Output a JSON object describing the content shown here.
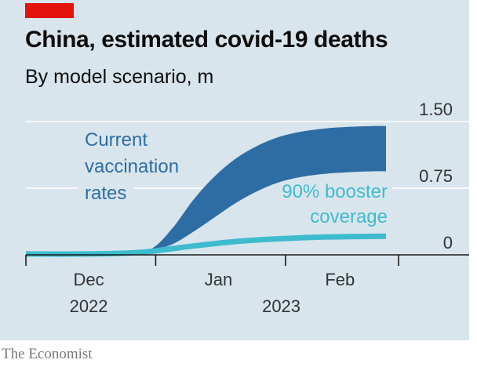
{
  "title": "China, estimated covid-19 deaths",
  "subtitle": "By model scenario, m",
  "source": "The Economist",
  "colors": {
    "background": "#d8e5ec",
    "brand_red": "#e3120b",
    "current_vaccination": "#2e6da4",
    "booster": "#3ebbcf",
    "gridline": "#ffffff",
    "text": "#0c0c0c"
  },
  "chart_data": {
    "type": "area",
    "title": "China, estimated covid-19 deaths",
    "subtitle": "By model scenario, m",
    "ylabel": "m",
    "ylim": [
      0,
      1.5
    ],
    "yticks": [
      {
        "value": 0,
        "label": "0"
      },
      {
        "value": 0.75,
        "label": "0.75"
      },
      {
        "value": 1.5,
        "label": "1.50"
      }
    ],
    "xrange": [
      "2022-12-01",
      "2023-02-28"
    ],
    "xticks": [
      "2022-12-01",
      "2023-01-01",
      "2023-02-01",
      "2023-02-28"
    ],
    "xlabels": [
      {
        "month": "Dec",
        "year": "2022",
        "center": "2022-12-16"
      },
      {
        "month": "Jan",
        "year": "",
        "center": "2023-01-16"
      },
      {
        "month": "Feb",
        "year": "",
        "center": "2023-02-14"
      }
    ],
    "year_labels": [
      {
        "text": "2022",
        "center": "2022-12-16"
      },
      {
        "text": "2023",
        "center": "2023-01-31"
      }
    ],
    "series": [
      {
        "name": "Current vaccination rates",
        "kind": "band",
        "label_lines": [
          "Current",
          "vaccination",
          "rates"
        ],
        "x": [
          "2022-12-01",
          "2022-12-15",
          "2022-12-25",
          "2022-12-31",
          "2023-01-05",
          "2023-01-10",
          "2023-01-15",
          "2023-01-20",
          "2023-01-25",
          "2023-01-30",
          "2023-02-04",
          "2023-02-10",
          "2023-02-16",
          "2023-02-22",
          "2023-02-25"
        ],
        "upper": [
          0.01,
          0.01,
          0.02,
          0.07,
          0.3,
          0.62,
          0.88,
          1.08,
          1.22,
          1.32,
          1.38,
          1.42,
          1.44,
          1.45,
          1.45
        ],
        "lower": [
          0.01,
          0.01,
          0.02,
          0.05,
          0.12,
          0.26,
          0.42,
          0.58,
          0.71,
          0.81,
          0.87,
          0.91,
          0.93,
          0.94,
          0.94
        ]
      },
      {
        "name": "90% booster coverage",
        "kind": "line",
        "label_lines": [
          "90% booster",
          "coverage"
        ],
        "x": [
          "2022-12-01",
          "2022-12-15",
          "2022-12-25",
          "2022-12-31",
          "2023-01-05",
          "2023-01-10",
          "2023-01-20",
          "2023-01-30",
          "2023-02-10",
          "2023-02-25"
        ],
        "values": [
          0.01,
          0.01,
          0.02,
          0.04,
          0.07,
          0.1,
          0.15,
          0.18,
          0.2,
          0.21
        ]
      }
    ]
  }
}
